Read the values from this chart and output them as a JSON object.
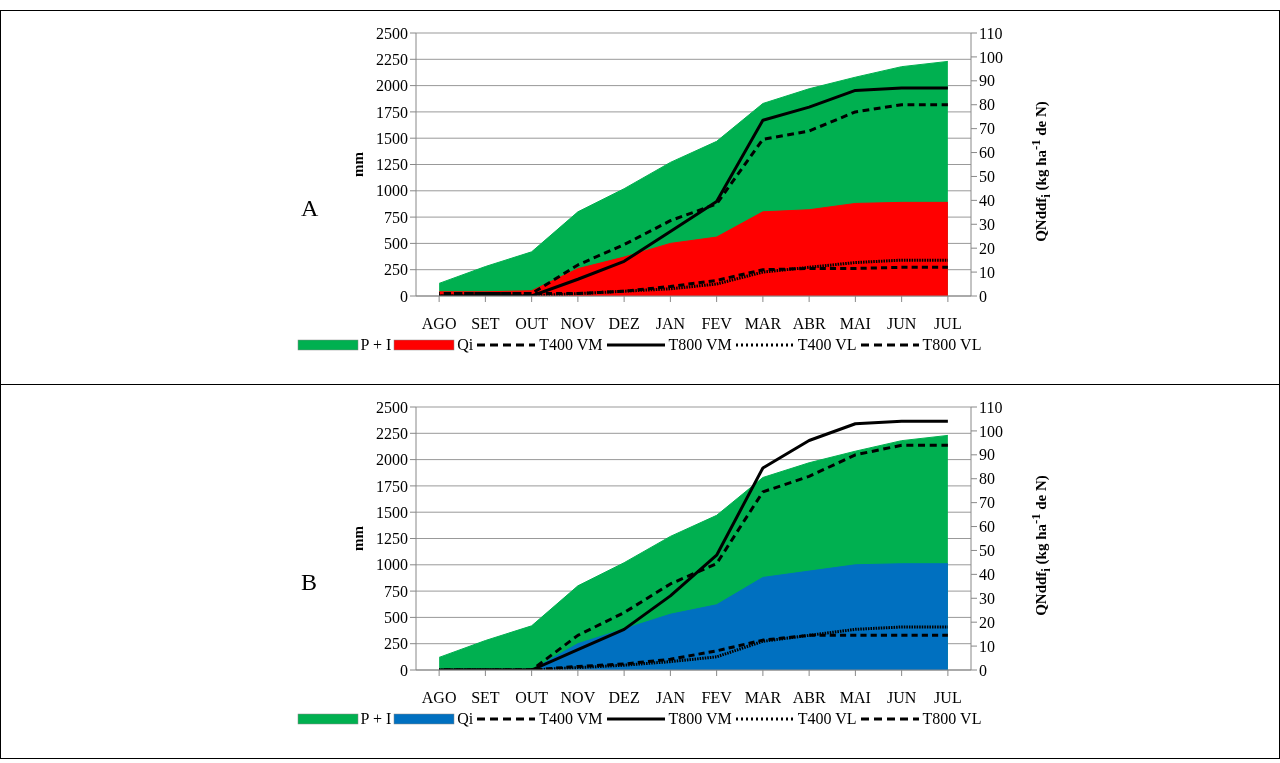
{
  "chart_data": [
    {
      "type": "area",
      "title": "A",
      "ylabel": "mm",
      "y2label": "QNddf$_{i}$ (kg ha$^{-1}$ de N)",
      "categories": [
        "AGO",
        "SET",
        "OUT",
        "NOV",
        "DEZ",
        "JAN",
        "FEV",
        "MAR",
        "ABR",
        "MAI",
        "JUN",
        "JUL"
      ],
      "ylim": [
        0,
        2500
      ],
      "yticks": [
        0,
        250,
        500,
        750,
        1000,
        1250,
        1500,
        1750,
        2000,
        2250,
        2500
      ],
      "y2lim": [
        0,
        110
      ],
      "y2ticks": [
        0,
        10,
        20,
        30,
        40,
        50,
        60,
        70,
        80,
        90,
        100,
        110
      ],
      "grid": "y",
      "legend": "bottom",
      "marker": "none",
      "series": [
        {
          "name": "P + I",
          "color": "#00b050",
          "values": [
            120,
            280,
            420,
            800,
            1020,
            1270,
            1470,
            1830,
            1970,
            2080,
            2180,
            2230
          ]
        },
        {
          "name": "Qi",
          "color": "#ff0000",
          "values": [
            40,
            40,
            50,
            260,
            370,
            500,
            560,
            800,
            820,
            880,
            890,
            890
          ]
        },
        {
          "name": "T400 VM",
          "type": "line",
          "axis": "y2",
          "color": "#000000",
          "line_style": "dashed",
          "values": [
            1,
            1,
            1,
            13,
            21.5,
            31.5,
            38.5,
            65.5,
            69,
            77,
            80,
            80
          ]
        },
        {
          "name": "T800 VM",
          "type": "line",
          "axis": "y2",
          "color": "#000000",
          "line_style": "solid",
          "values": [
            0,
            0,
            0,
            7,
            14.5,
            27,
            39.5,
            73.5,
            79,
            86,
            87,
            87
          ]
        },
        {
          "name": "T400 VL",
          "type": "line",
          "axis": "y2",
          "color": "#000000",
          "line_style": "dotted",
          "values": [
            0,
            0,
            0,
            1,
            2,
            3,
            5,
            10,
            12,
            14,
            15,
            15
          ]
        },
        {
          "name": "T800 VL",
          "type": "line",
          "axis": "y2",
          "color": "#000000",
          "line_style": "dashed",
          "values": [
            1,
            1,
            1,
            1,
            2,
            4,
            6.5,
            11,
            11.5,
            11.5,
            12,
            12
          ]
        }
      ]
    },
    {
      "type": "area",
      "title": "B",
      "ylabel": "mm",
      "y2label": "QNddf$_{i}$ (kg ha$^{-1}$ de N)",
      "categories": [
        "AGO",
        "SET",
        "OUT",
        "NOV",
        "DEZ",
        "JAN",
        "FEV",
        "MAR",
        "ABR",
        "MAI",
        "JUN",
        "JUL"
      ],
      "ylim": [
        0,
        2500
      ],
      "yticks": [
        0,
        250,
        500,
        750,
        1000,
        1250,
        1500,
        1750,
        2000,
        2250,
        2500
      ],
      "y2lim": [
        0,
        110
      ],
      "y2ticks": [
        0,
        10,
        20,
        30,
        40,
        50,
        60,
        70,
        80,
        90,
        100,
        110
      ],
      "grid": "y",
      "legend": "bottom",
      "marker": "none",
      "series": [
        {
          "name": "P + I",
          "color": "#00b050",
          "values": [
            120,
            280,
            420,
            800,
            1020,
            1270,
            1470,
            1830,
            1970,
            2080,
            2180,
            2230
          ]
        },
        {
          "name": "Qi",
          "color": "#0070c0",
          "values": [
            0,
            0,
            0,
            250,
            390,
            530,
            620,
            880,
            940,
            1000,
            1010,
            1010
          ]
        },
        {
          "name": "T400 VM",
          "type": "line",
          "axis": "y2",
          "color": "#000000",
          "line_style": "dashed",
          "values": [
            0,
            0,
            0,
            14.5,
            24,
            36,
            44.5,
            74.5,
            81,
            90,
            94,
            94
          ]
        },
        {
          "name": "T800 VM",
          "type": "line",
          "axis": "y2",
          "color": "#000000",
          "line_style": "solid",
          "values": [
            0,
            0,
            0,
            8.5,
            17,
            31,
            48,
            84.5,
            96,
            103,
            104,
            104
          ]
        },
        {
          "name": "T400 VL",
          "type": "line",
          "axis": "y2",
          "color": "#000000",
          "line_style": "dotted",
          "values": [
            0,
            0,
            0,
            1,
            2,
            3.5,
            5.5,
            12,
            14.5,
            17,
            18,
            18
          ]
        },
        {
          "name": "T800 VL",
          "type": "line",
          "axis": "y2",
          "color": "#000000",
          "line_style": "dashed",
          "values": [
            0,
            0,
            0,
            1.5,
            2.5,
            4.5,
            8,
            12.5,
            14.5,
            14.5,
            14.5,
            14.5
          ]
        }
      ]
    }
  ]
}
